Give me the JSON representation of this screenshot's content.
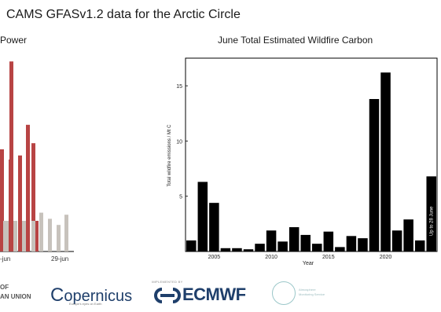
{
  "header": {
    "title": "CAMS GFASv1.2 data for the Arctic Circle"
  },
  "left_panel": {
    "title_fragment": "Power",
    "xtick_left": "-jun",
    "xtick_right": "29-jun"
  },
  "footer": {
    "eu_line1": "OF",
    "eu_line2": "AN UNION",
    "copernicus": "opernicus",
    "copernicus_c": "C",
    "copernicus_sub": "Europe's eyes on Earth",
    "implemented_by": "IMPLEMENTED BY",
    "ecmwf": "ECMWF",
    "atm_line1": "Atmosphere",
    "atm_line2": "Monitoring Service"
  },
  "chart_data": [
    {
      "type": "bar",
      "title": "Power",
      "xlabel": "",
      "ylabel": "",
      "xtick_labels": [
        "-jun",
        "29-jun"
      ],
      "series": [
        {
          "name": "",
          "color": "#b84444",
          "values": [
            0.5,
            0.45,
            0.93,
            0.47,
            0.62,
            0.53,
            0.15
          ]
        },
        {
          "name": "",
          "color": "#c7c2bc",
          "values": [
            0.15,
            0.15,
            0.15,
            0.15,
            0.15,
            0.19,
            0.16,
            0.13,
            0.18
          ]
        }
      ]
    },
    {
      "type": "bar",
      "title": "June Total Estimated Wildfire Carbon",
      "xlabel": "Year",
      "ylabel": "Total wildfire emissions / Mt C",
      "ylim": [
        0,
        17.5
      ],
      "yticks": [
        5,
        10,
        15
      ],
      "xticks": [
        2005,
        2010,
        2015,
        2020
      ],
      "x": [
        2003,
        2004,
        2005,
        2006,
        2007,
        2008,
        2009,
        2010,
        2011,
        2012,
        2013,
        2014,
        2015,
        2016,
        2017,
        2018,
        2019,
        2020,
        2021,
        2022,
        2023,
        2024
      ],
      "values": [
        1.0,
        6.3,
        4.4,
        0.3,
        0.3,
        0.2,
        0.7,
        1.9,
        0.9,
        2.2,
        1.5,
        0.7,
        1.8,
        0.4,
        1.4,
        1.2,
        13.8,
        16.2,
        1.9,
        2.9,
        1.0,
        6.8
      ],
      "bar_color": "#000000",
      "annotation": "Up to 28 June",
      "grid": false
    }
  ]
}
